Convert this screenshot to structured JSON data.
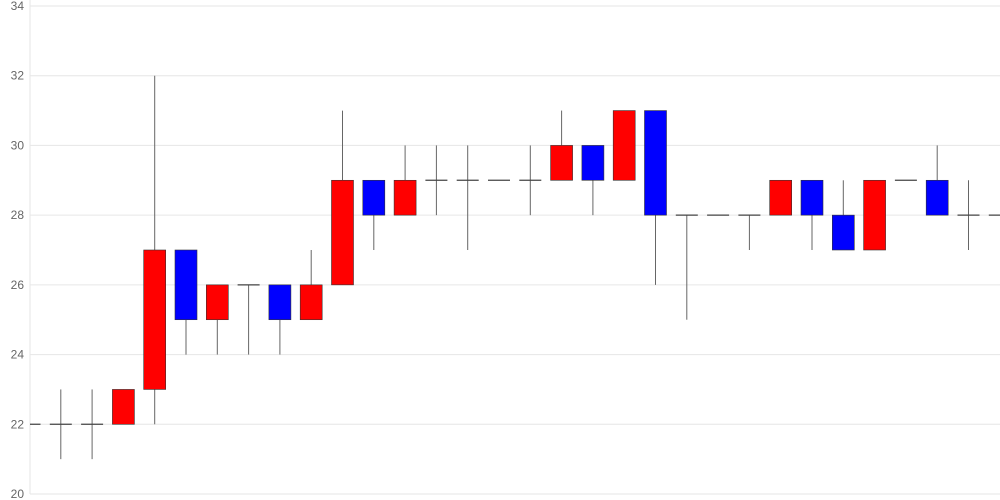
{
  "chart_data": {
    "type": "candlestick",
    "title": "",
    "xlabel": "",
    "ylabel": "",
    "ylim": [
      20,
      34
    ],
    "yticks": [
      "20",
      "22",
      "24",
      "26",
      "28",
      "30",
      "32",
      "34"
    ],
    "grid": true,
    "colors": {
      "up": "#ff0000",
      "down": "#0000ff",
      "wick": "#666666",
      "grid": "#e6e6e6"
    },
    "candles": [
      {
        "open": 22,
        "high": 23,
        "low": 21,
        "close": 22
      },
      {
        "open": 22,
        "high": 23,
        "low": 21,
        "close": 22
      },
      {
        "open": 22,
        "high": 23,
        "low": 21,
        "close": 22
      },
      {
        "open": 22,
        "high": 23,
        "low": 22,
        "close": 23
      },
      {
        "open": 23,
        "high": 32,
        "low": 22,
        "close": 27
      },
      {
        "open": 27,
        "high": 27,
        "low": 24,
        "close": 25
      },
      {
        "open": 25,
        "high": 26,
        "low": 24,
        "close": 26
      },
      {
        "open": 26,
        "high": 26,
        "low": 24,
        "close": 26
      },
      {
        "open": 26,
        "high": 26,
        "low": 24,
        "close": 25
      },
      {
        "open": 25,
        "high": 27,
        "low": 25,
        "close": 26
      },
      {
        "open": 26,
        "high": 31,
        "low": 26,
        "close": 29
      },
      {
        "open": 29,
        "high": 29,
        "low": 27,
        "close": 28
      },
      {
        "open": 28,
        "high": 30,
        "low": 28,
        "close": 29
      },
      {
        "open": 29,
        "high": 30,
        "low": 28,
        "close": 29
      },
      {
        "open": 29,
        "high": 30,
        "low": 27,
        "close": 29
      },
      {
        "open": 29,
        "high": 29,
        "low": 29,
        "close": 29
      },
      {
        "open": 29,
        "high": 30,
        "low": 28,
        "close": 29
      },
      {
        "open": 29,
        "high": 31,
        "low": 29,
        "close": 30
      },
      {
        "open": 30,
        "high": 30,
        "low": 28,
        "close": 29
      },
      {
        "open": 29,
        "high": 31,
        "low": 29,
        "close": 31
      },
      {
        "open": 31,
        "high": 31,
        "low": 26,
        "close": 28
      },
      {
        "open": 28,
        "high": 28,
        "low": 25,
        "close": 28
      },
      {
        "open": 28,
        "high": 28,
        "low": 28,
        "close": 28
      },
      {
        "open": 28,
        "high": 28,
        "low": 27,
        "close": 28
      },
      {
        "open": 28,
        "high": 29,
        "low": 28,
        "close": 29
      },
      {
        "open": 29,
        "high": 29,
        "low": 27,
        "close": 28
      },
      {
        "open": 28,
        "high": 29,
        "low": 27,
        "close": 27
      },
      {
        "open": 27,
        "high": 29,
        "low": 27,
        "close": 29
      },
      {
        "open": 29,
        "high": 29,
        "low": 29,
        "close": 29
      },
      {
        "open": 29,
        "high": 30,
        "low": 28,
        "close": 28
      },
      {
        "open": 28,
        "high": 29,
        "low": 27,
        "close": 28
      },
      {
        "open": 28,
        "high": 28,
        "low": 28,
        "close": 28
      }
    ]
  }
}
